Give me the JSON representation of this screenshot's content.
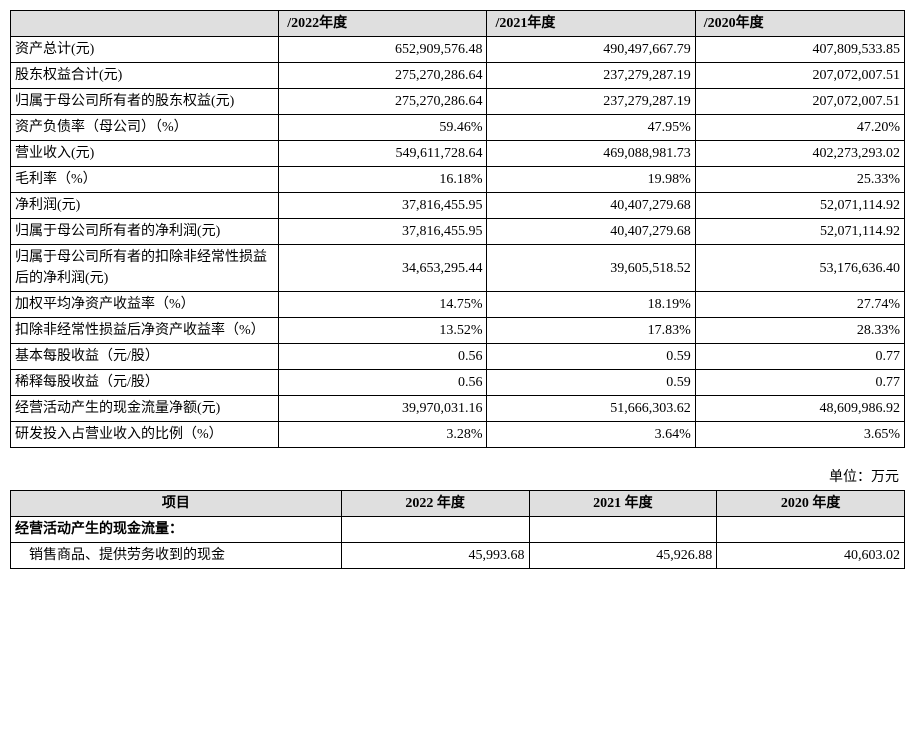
{
  "table1": {
    "headers": [
      "",
      "/2022年度",
      "/2021年度",
      "/2020年度"
    ],
    "rows": [
      {
        "label": "资产总计(元)",
        "v": [
          "652,909,576.48",
          "490,497,667.79",
          "407,809,533.85"
        ]
      },
      {
        "label": "股东权益合计(元)",
        "v": [
          "275,270,286.64",
          "237,279,287.19",
          "207,072,007.51"
        ]
      },
      {
        "label": "归属于母公司所有者的股东权益(元)",
        "v": [
          "275,270,286.64",
          "237,279,287.19",
          "207,072,007.51"
        ]
      },
      {
        "label": "资产负债率（母公司）（%）",
        "v": [
          "59.46%",
          "47.95%",
          "47.20%"
        ]
      },
      {
        "label": "营业收入(元)",
        "v": [
          "549,611,728.64",
          "469,088,981.73",
          "402,273,293.02"
        ]
      },
      {
        "label": "毛利率（%）",
        "v": [
          "16.18%",
          "19.98%",
          "25.33%"
        ]
      },
      {
        "label": "净利润(元)",
        "v": [
          "37,816,455.95",
          "40,407,279.68",
          "52,071,114.92"
        ]
      },
      {
        "label": "归属于母公司所有者的净利润(元)",
        "v": [
          "37,816,455.95",
          "40,407,279.68",
          "52,071,114.92"
        ]
      },
      {
        "label": "归属于母公司所有者的扣除非经常性损益后的净利润(元)",
        "v": [
          "34,653,295.44",
          "39,605,518.52",
          "53,176,636.40"
        ]
      },
      {
        "label": "加权平均净资产收益率（%）",
        "v": [
          "14.75%",
          "18.19%",
          "27.74%"
        ]
      },
      {
        "label": "扣除非经常性损益后净资产收益率（%）",
        "v": [
          "13.52%",
          "17.83%",
          "28.33%"
        ]
      },
      {
        "label": "基本每股收益（元/股）",
        "v": [
          "0.56",
          "0.59",
          "0.77"
        ]
      },
      {
        "label": "稀释每股收益（元/股）",
        "v": [
          "0.56",
          "0.59",
          "0.77"
        ]
      },
      {
        "label": "经营活动产生的现金流量净额(元)",
        "v": [
          "39,970,031.16",
          "51,666,303.62",
          "48,609,986.92"
        ]
      },
      {
        "label": "研发投入占营业收入的比例（%）",
        "v": [
          "3.28%",
          "3.64%",
          "3.65%"
        ]
      }
    ]
  },
  "unit_label": "单位：万元",
  "table2": {
    "headers": [
      "项目",
      "2022 年度",
      "2021 年度",
      "2020 年度"
    ],
    "section": "经营活动产生的现金流量：",
    "row": {
      "label": "销售商品、提供劳务收到的现金",
      "v": [
        "45,993.68",
        "45,926.88",
        "40,603.02"
      ]
    }
  }
}
